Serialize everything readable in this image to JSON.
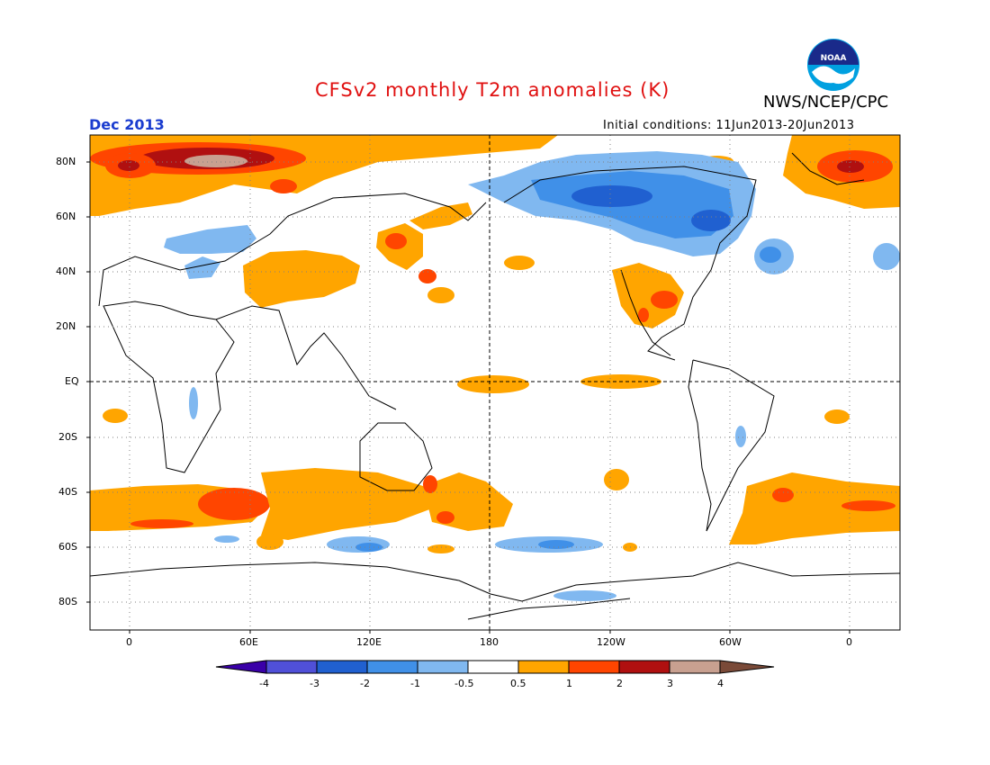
{
  "header": {
    "title": "CFSv2 monthly T2m anomalies (K)",
    "agency": "NWS/NCEP/CPC",
    "month": "Dec 2013",
    "initial_conditions": "Initial conditions: 11Jun2013-20Jun2013",
    "logo_text": "NOAA"
  },
  "axes": {
    "lat_labels": [
      "80N",
      "60N",
      "40N",
      "20N",
      "EQ",
      "20S",
      "40S",
      "60S",
      "80S"
    ],
    "lon_labels": [
      "0",
      "60E",
      "120E",
      "180",
      "120W",
      "60W",
      "0"
    ]
  },
  "colorbar": {
    "labels": [
      "-4",
      "-3",
      "-2",
      "-1",
      "-0.5",
      "0.5",
      "1",
      "2",
      "3",
      "4"
    ],
    "colors": [
      "#3a00a8",
      "#5050d8",
      "#2060d0",
      "#4090e8",
      "#80b8f0",
      "#ffffff",
      "#ffa500",
      "#ff4500",
      "#b01010",
      "#c8a090",
      "#7a4a38"
    ]
  },
  "colors": {
    "title": "#e01010",
    "month": "#1a3ccf",
    "warm1": "#ffa500",
    "warm2": "#ff4500",
    "warm3": "#b01010",
    "warm4": "#c8a090",
    "cold1": "#80b8f0",
    "cold2": "#4090e8",
    "cold3": "#2060d0"
  }
}
